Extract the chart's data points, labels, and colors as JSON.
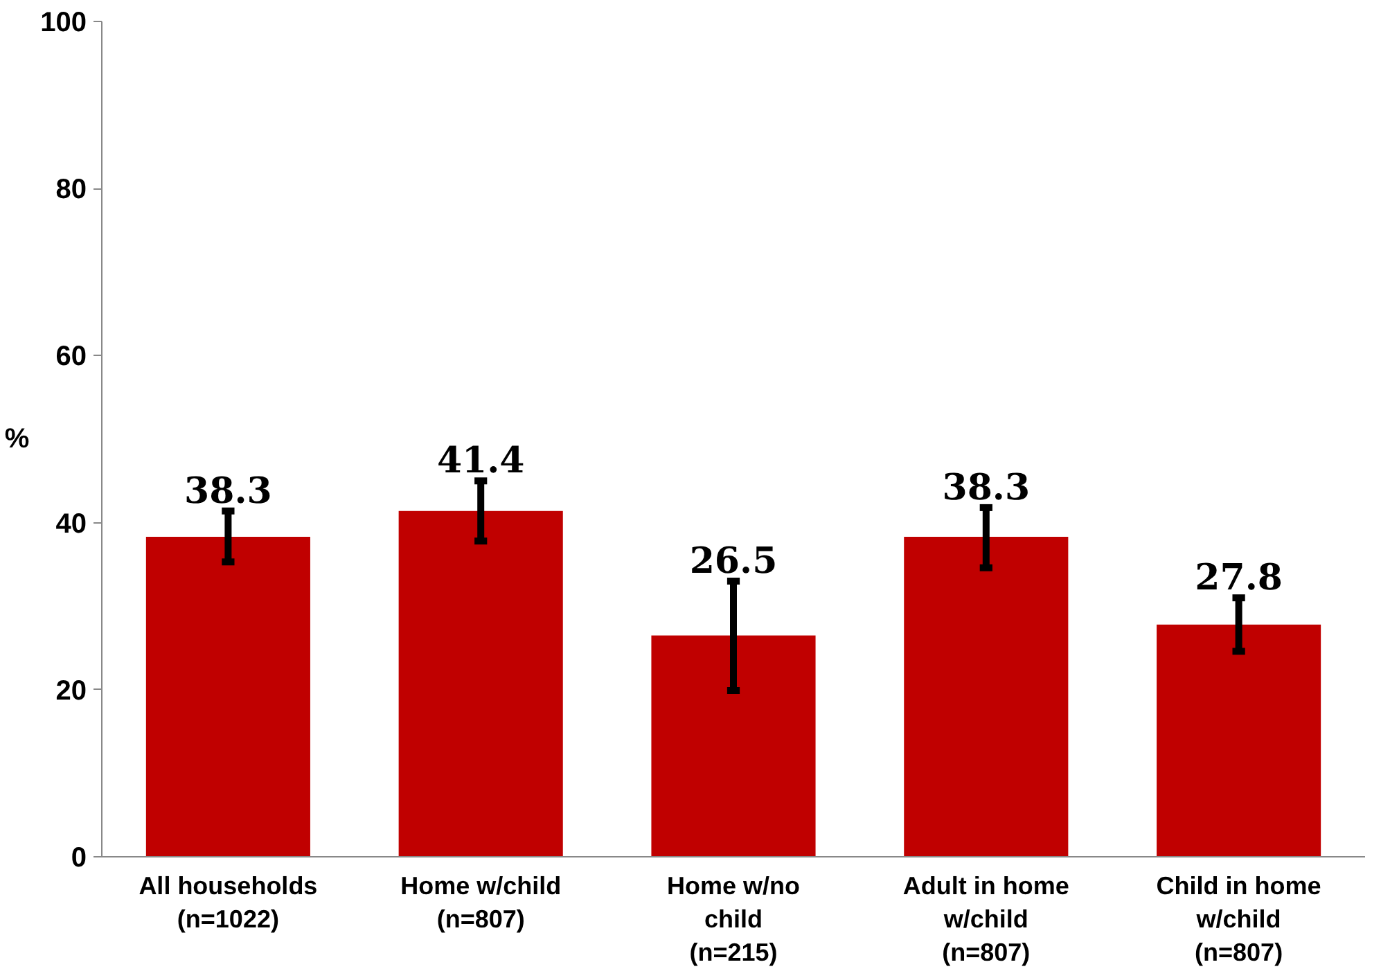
{
  "chart_data": {
    "type": "bar",
    "ylabel": "%",
    "categories": [
      "All households\n(n=1022)",
      "Home w/child\n(n=807)",
      "Home w/no\nchild\n(n=215)",
      "Adult in home\nw/child\n(n=807)",
      "Child in home\nw/child\n(n=807)"
    ],
    "values": [
      38.3,
      41.4,
      26.5,
      38.3,
      27.8
    ],
    "errors": [
      [
        35.3,
        41.4
      ],
      [
        37.8,
        45.0
      ],
      [
        19.9,
        33.0
      ],
      [
        34.6,
        41.8
      ],
      [
        24.6,
        31.0
      ]
    ],
    "color": "#c00000",
    "data_labels": true,
    "ylim": [
      0,
      100
    ],
    "yticks": [
      0,
      20,
      40,
      60,
      80,
      100
    ],
    "grid": false
  }
}
